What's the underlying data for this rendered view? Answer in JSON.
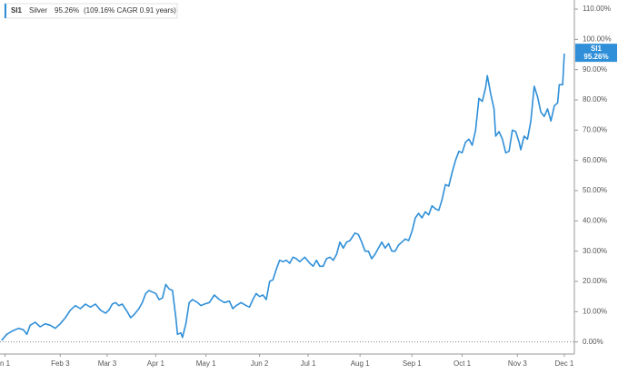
{
  "chart_data": {
    "type": "line",
    "legend": {
      "symbol": "SI1",
      "change": "95.26%",
      "note": "(109.16% CAGR 0.91 years)"
    },
    "last_value_label": "95.26%",
    "x": [
      -2,
      1,
      4,
      8,
      11,
      13,
      15,
      18,
      21,
      24,
      27,
      30,
      33,
      36,
      39,
      42,
      45,
      48,
      51,
      54,
      57,
      60,
      62,
      64,
      66,
      68,
      70,
      73,
      75,
      77,
      80,
      82,
      84,
      86,
      88,
      90,
      92,
      94,
      96,
      98,
      100,
      102,
      103,
      105,
      106,
      108,
      110,
      112,
      115,
      117,
      119,
      122,
      125,
      128,
      131,
      134,
      136,
      138,
      141,
      144,
      146,
      148,
      150,
      152,
      154,
      156,
      158,
      160,
      162,
      164,
      166,
      168,
      170,
      172,
      174,
      176,
      179,
      182,
      184,
      186,
      188,
      190,
      192,
      194,
      196,
      198,
      200,
      202,
      204,
      206,
      209,
      211,
      213,
      215,
      217,
      219,
      221,
      223,
      225,
      227,
      229,
      231,
      233,
      235,
      237,
      239,
      241,
      243,
      245,
      247,
      249,
      251,
      253,
      255,
      257,
      259,
      261,
      263,
      265,
      267,
      269,
      271,
      273,
      275,
      277,
      279,
      281,
      283,
      285,
      287,
      288,
      290,
      292,
      293,
      295,
      297,
      299,
      301,
      303,
      305,
      307,
      308,
      310,
      312,
      314,
      316,
      318,
      320,
      322,
      324,
      326,
      328,
      330,
      331,
      333,
      334
    ],
    "series": [
      {
        "name": "Silver",
        "symbol": "SI1",
        "color": "#2f8fd8",
        "values": [
          0.5,
          2.5,
          3.5,
          4.5,
          4,
          2.5,
          5.5,
          6.5,
          5,
          6,
          5.5,
          4.5,
          6,
          8,
          10.5,
          12,
          11,
          12.5,
          11.5,
          12.5,
          10.5,
          9.5,
          10.5,
          12.5,
          13,
          12,
          12.5,
          10,
          8,
          9,
          11,
          13,
          16,
          17,
          16.5,
          16,
          14,
          14.5,
          19,
          17.5,
          17,
          8,
          2.5,
          3,
          1.5,
          6,
          13,
          14,
          13,
          12,
          12.5,
          13,
          15.5,
          14,
          13,
          13.5,
          11,
          12,
          13,
          12,
          11.5,
          14,
          16,
          15,
          15.5,
          14,
          20,
          20.5,
          24,
          27,
          26.5,
          27,
          26,
          28,
          27.5,
          26.5,
          28,
          26,
          25,
          27,
          25,
          25,
          27.5,
          28,
          27,
          29,
          33,
          31,
          33,
          33.5,
          36,
          35.5,
          33,
          30,
          30,
          27.5,
          29,
          31,
          33,
          31,
          32.5,
          30,
          30,
          32,
          33,
          34,
          33.5,
          36.5,
          41,
          42.5,
          41,
          43,
          42,
          45,
          44,
          43.5,
          47,
          52,
          51.5,
          56,
          60,
          63,
          62.5,
          66,
          67,
          65,
          70,
          80.5,
          79.5,
          84,
          88,
          82,
          77,
          68,
          69.5,
          67,
          62.5,
          63,
          70,
          69.5,
          66,
          63.5,
          68,
          67,
          73,
          84.5,
          81,
          76,
          74.5,
          77,
          73,
          78,
          79,
          85,
          85,
          95.26
        ]
      }
    ],
    "xlim": [
      -3,
      340
    ],
    "xticks": [
      {
        "value": 0,
        "label": "n 1"
      },
      {
        "value": 33,
        "label": "Feb 3"
      },
      {
        "value": 61,
        "label": "Mar 3"
      },
      {
        "value": 90,
        "label": "Apr 1"
      },
      {
        "value": 120,
        "label": "May 1"
      },
      {
        "value": 152,
        "label": "Jun 2"
      },
      {
        "value": 181,
        "label": "Jul 1"
      },
      {
        "value": 212,
        "label": "Aug 1"
      },
      {
        "value": 243,
        "label": "Sep 1"
      },
      {
        "value": 273,
        "label": "Oct 1"
      },
      {
        "value": 306,
        "label": "Nov 3"
      },
      {
        "value": 334,
        "label": "Dec 1"
      }
    ],
    "ylim": [
      -4,
      113
    ],
    "yticks": [
      {
        "value": 0,
        "label": "0.00%"
      },
      {
        "value": 10,
        "label": "10.00%"
      },
      {
        "value": 20,
        "label": "20.00%"
      },
      {
        "value": 30,
        "label": "30.00%"
      },
      {
        "value": 40,
        "label": "40.00%"
      },
      {
        "value": 50,
        "label": "50.00%"
      },
      {
        "value": 60,
        "label": "60.00%"
      },
      {
        "value": 70,
        "label": "70.00%"
      },
      {
        "value": 80,
        "label": "80.00%"
      },
      {
        "value": 90,
        "label": "90.00%"
      },
      {
        "value": 100,
        "label": "100.00%"
      },
      {
        "value": 110,
        "label": "110.00%"
      }
    ],
    "zero_line": true
  }
}
